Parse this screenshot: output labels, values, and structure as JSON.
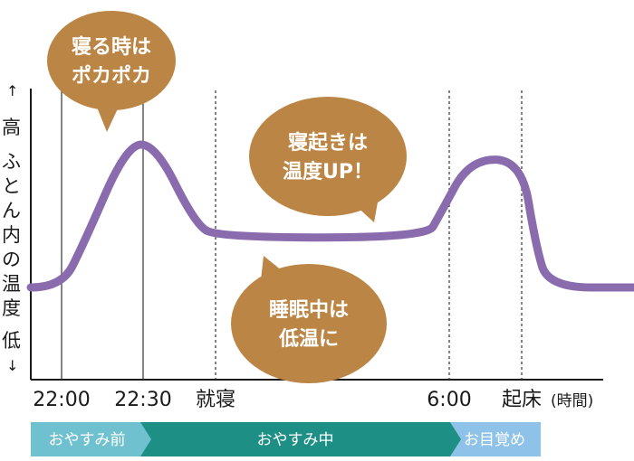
{
  "colors": {
    "curve": "#8a6cae",
    "bubble": "#bb8545",
    "phase_before": "#6fc1cf",
    "phase_during": "#1e8f85",
    "phase_after": "#8fc2e8",
    "axis": "#1a1a1a",
    "marker": "#333333"
  },
  "y_axis": {
    "high": "高",
    "low": "低",
    "label_chars": [
      "ふ",
      "と",
      "ん",
      "内",
      "の",
      "温",
      "度"
    ]
  },
  "x_axis": {
    "unit": "(時間)",
    "ticks": [
      {
        "label": "22:00",
        "minutes": 0
      },
      {
        "label": "22:30",
        "minutes": 30
      },
      {
        "label": "就寝",
        "minutes": 65
      },
      {
        "label": "6:00",
        "minutes": 480
      },
      {
        "label": "起床",
        "minutes": 515
      }
    ]
  },
  "bubbles": [
    {
      "lines": [
        "寝る時は",
        "ポカポカ"
      ]
    },
    {
      "lines": [
        "寝起きは",
        "温度UP！"
      ]
    },
    {
      "lines": [
        "睡眠中は",
        "低温に"
      ]
    }
  ],
  "phases": [
    {
      "label": "おやすみ前",
      "icon": "arrow-chevron"
    },
    {
      "label": "おやすみ中",
      "icon": "arrow-chevron"
    },
    {
      "label": "お目覚め",
      "icon": "none"
    }
  ],
  "chart_data": {
    "type": "line",
    "x_unit": "(時間)",
    "y_scale": "relative (低–高)",
    "series": [
      {
        "points": [
          {
            "minutes": -15,
            "level": 0.0
          },
          {
            "minutes": 0,
            "level": 0.0
          },
          {
            "minutes": 8,
            "level": 0.3
          },
          {
            "minutes": 24,
            "level": 1.0
          },
          {
            "minutes": 36,
            "level": 1.0
          },
          {
            "minutes": 55,
            "level": 0.45
          },
          {
            "minutes": 68,
            "level": 0.35
          },
          {
            "minutes": 440,
            "level": 0.35
          },
          {
            "minutes": 462,
            "level": 0.5
          },
          {
            "minutes": 490,
            "level": 0.9
          },
          {
            "minutes": 515,
            "level": 0.89
          },
          {
            "minutes": 527,
            "level": 0.3
          },
          {
            "minutes": 538,
            "level": 0.0
          },
          {
            "minutes": 612,
            "level": 0.0
          }
        ]
      }
    ],
    "markers": [
      0,
      30,
      65,
      480,
      515
    ],
    "legend": "none",
    "grid": false
  }
}
